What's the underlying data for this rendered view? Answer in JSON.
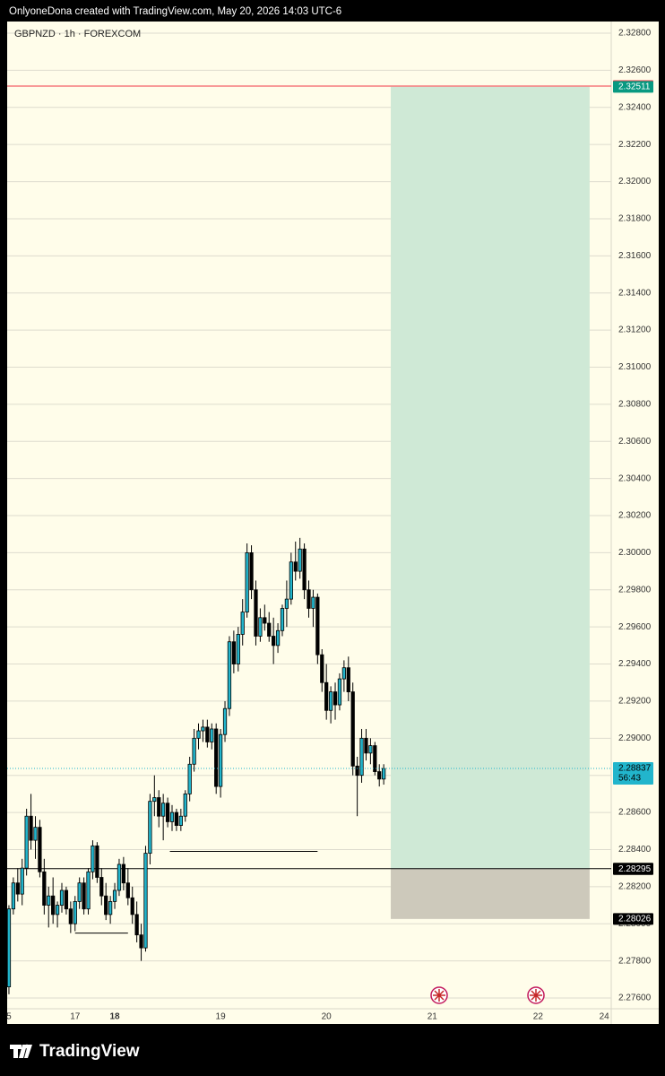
{
  "header": "OnlyoneDona created with TradingView.com, May 20, 2026 14:03 UTC-6",
  "footer": "TradingView",
  "chart_data": {
    "type": "candlestick",
    "title": "GBPNZD · 1h · FOREXCOM",
    "open": [
      2.2766,
      2.2808,
      2.2822,
      2.2816,
      2.283,
      2.2858,
      2.2845,
      2.2852,
      2.2828,
      2.281,
      2.2815,
      2.2805,
      2.281,
      2.2818,
      2.2808,
      2.28,
      2.2812,
      2.2822,
      2.2808,
      2.2828,
      2.2842,
      2.2825,
      2.2815,
      2.2805,
      2.2812,
      2.2818,
      2.2832,
      2.2822,
      2.2814,
      2.2805,
      2.2794,
      2.2787,
      2.2838,
      2.2866,
      2.2868,
      2.2858,
      2.2865,
      2.2855,
      2.286,
      2.2853,
      2.2858,
      2.287,
      2.2886,
      2.29,
      2.2904,
      2.2906,
      2.2898,
      2.2905,
      2.2874,
      2.2902,
      2.2916,
      2.2952,
      2.294,
      2.2956,
      2.2968,
      2.3,
      2.298,
      2.2955,
      2.2965,
      2.2962,
      2.2955,
      2.295,
      2.2958,
      2.297,
      2.2975,
      2.2995,
      2.299,
      2.3002,
      2.298,
      2.297,
      2.2976,
      2.2945,
      2.293,
      2.2915,
      2.2925,
      2.2918,
      2.2932,
      2.2938,
      2.2925,
      2.2885,
      2.288,
      2.29,
      2.2892,
      2.2896,
      2.2882,
      2.2878
    ],
    "high": [
      2.281,
      2.2825,
      2.283,
      2.2835,
      2.2862,
      2.287,
      2.2858,
      2.2856,
      2.2835,
      2.282,
      2.2825,
      2.2812,
      2.2822,
      2.282,
      2.2812,
      2.2815,
      2.2825,
      2.2825,
      2.283,
      2.2845,
      2.2844,
      2.283,
      2.2822,
      2.2815,
      2.2822,
      2.2835,
      2.2836,
      2.283,
      2.282,
      2.2812,
      2.28,
      2.2842,
      2.287,
      2.288,
      2.2872,
      2.287,
      2.2868,
      2.2864,
      2.2862,
      2.2862,
      2.2872,
      2.289,
      2.2905,
      2.2908,
      2.291,
      2.291,
      2.2908,
      2.2908,
      2.2905,
      2.292,
      2.2955,
      2.2958,
      2.296,
      2.2975,
      2.3005,
      2.3004,
      2.2985,
      2.297,
      2.2972,
      2.2968,
      2.2965,
      2.2962,
      2.2972,
      2.2985,
      2.3,
      2.3006,
      2.3008,
      2.3005,
      2.2985,
      2.298,
      2.2978,
      2.2948,
      2.294,
      2.2928,
      2.293,
      2.2935,
      2.2942,
      2.2944,
      2.293,
      2.289,
      2.2905,
      2.2905,
      2.29,
      2.2898,
      2.2886,
      2.2886
    ],
    "low": [
      2.2762,
      2.2805,
      2.2812,
      2.281,
      2.2826,
      2.284,
      2.2835,
      2.2825,
      2.2805,
      2.2798,
      2.28,
      2.2798,
      2.2806,
      2.2805,
      2.2795,
      2.2796,
      2.2808,
      2.2805,
      2.2805,
      2.2824,
      2.2822,
      2.281,
      2.2802,
      2.28,
      2.2808,
      2.2815,
      2.2818,
      2.281,
      2.28,
      2.279,
      2.278,
      2.2785,
      2.2832,
      2.2858,
      2.2852,
      2.2845,
      2.2852,
      2.285,
      2.285,
      2.285,
      2.2855,
      2.2866,
      2.2882,
      2.2894,
      2.2898,
      2.2895,
      2.2894,
      2.287,
      2.2868,
      2.2898,
      2.2912,
      2.2935,
      2.2936,
      2.295,
      2.2965,
      2.2975,
      2.295,
      2.2952,
      2.2958,
      2.2952,
      2.294,
      2.2946,
      2.2955,
      2.296,
      2.2972,
      2.2985,
      2.2986,
      2.2975,
      2.2965,
      2.296,
      2.294,
      2.2925,
      2.291,
      2.2908,
      2.291,
      2.2915,
      2.2925,
      2.292,
      2.288,
      2.2858,
      2.2876,
      2.2888,
      2.2886,
      2.288,
      2.2874,
      2.2875
    ],
    "close": [
      2.2808,
      2.2822,
      2.2816,
      2.283,
      2.2858,
      2.2845,
      2.2852,
      2.2828,
      2.281,
      2.2815,
      2.2805,
      2.281,
      2.2818,
      2.2808,
      2.28,
      2.2812,
      2.2822,
      2.2808,
      2.2828,
      2.2842,
      2.2825,
      2.2815,
      2.2805,
      2.2812,
      2.2818,
      2.2832,
      2.2822,
      2.2814,
      2.2805,
      2.2794,
      2.2787,
      2.2838,
      2.2866,
      2.2868,
      2.2858,
      2.2865,
      2.2855,
      2.286,
      2.2853,
      2.2858,
      2.287,
      2.2886,
      2.29,
      2.2904,
      2.2906,
      2.2898,
      2.2905,
      2.2874,
      2.2902,
      2.2916,
      2.2952,
      2.294,
      2.2956,
      2.2968,
      2.3,
      2.298,
      2.2955,
      2.2965,
      2.2962,
      2.2955,
      2.295,
      2.2958,
      2.297,
      2.2975,
      2.2995,
      2.299,
      2.3002,
      2.298,
      2.297,
      2.2976,
      2.2945,
      2.293,
      2.2915,
      2.2925,
      2.2918,
      2.2932,
      2.2938,
      2.2925,
      2.2885,
      2.288,
      2.29,
      2.2892,
      2.2896,
      2.2882,
      2.2878,
      2.28837
    ],
    "up_color": "#22b5cc",
    "down_color": "#000000",
    "xlim": [
      -0.4,
      136.6
    ],
    "xticks": [
      {
        "value": 0,
        "label": "5"
      },
      {
        "value": 15,
        "label": "17"
      },
      {
        "value": 24,
        "label": "18"
      },
      {
        "value": 48,
        "label": "19"
      },
      {
        "value": 72,
        "label": "20"
      },
      {
        "value": 96,
        "label": "21"
      },
      {
        "value": 120,
        "label": "22"
      },
      {
        "value": 135,
        "label": "24"
      }
    ],
    "ylim": [
      2.27542,
      2.32863
    ],
    "yticks": [
      {
        "value": 2.276,
        "label": "2.27600"
      },
      {
        "value": 2.278,
        "label": "2.27800"
      },
      {
        "value": 2.28,
        "label": "2.28000"
      },
      {
        "value": 2.282,
        "label": "2.28200"
      },
      {
        "value": 2.284,
        "label": "2.28400"
      },
      {
        "value": 2.286,
        "label": "2.28600"
      },
      {
        "value": 2.288,
        "label": "2.28800"
      },
      {
        "value": 2.29,
        "label": "2.29000"
      },
      {
        "value": 2.292,
        "label": "2.29200"
      },
      {
        "value": 2.294,
        "label": "2.29400"
      },
      {
        "value": 2.296,
        "label": "2.29600"
      },
      {
        "value": 2.298,
        "label": "2.29800"
      },
      {
        "value": 2.3,
        "label": "2.30000"
      },
      {
        "value": 2.302,
        "label": "2.30200"
      },
      {
        "value": 2.304,
        "label": "2.30400"
      },
      {
        "value": 2.306,
        "label": "2.30600"
      },
      {
        "value": 2.308,
        "label": "2.30800"
      },
      {
        "value": 2.31,
        "label": "2.31000"
      },
      {
        "value": 2.312,
        "label": "2.31200"
      },
      {
        "value": 2.314,
        "label": "2.31400"
      },
      {
        "value": 2.316,
        "label": "2.31600"
      },
      {
        "value": 2.318,
        "label": "2.31800"
      },
      {
        "value": 2.32,
        "label": "2.32000"
      },
      {
        "value": 2.322,
        "label": "2.32200"
      },
      {
        "value": 2.324,
        "label": "2.32400"
      },
      {
        "value": 2.326,
        "label": "2.32600"
      },
      {
        "value": 2.328,
        "label": "2.32800"
      }
    ],
    "grid": true,
    "position": {
      "x": [
        86.6,
        131.7
      ],
      "target": 2.32511,
      "entry": 2.28297,
      "stop": 2.28026,
      "profit_color": "#cfe9d6",
      "loss_color": "#cdc9bb"
    },
    "price_lines": [
      {
        "value": 2.32515,
        "color": "#f23645"
      },
      {
        "value": 2.28297,
        "color": "#000000"
      }
    ],
    "levels": [
      {
        "value": 2.2839,
        "x": [
          36.5,
          70
        ]
      },
      {
        "value": 2.2795,
        "x": [
          15,
          27
        ]
      }
    ],
    "axis_labels": [
      {
        "value": 2.32515,
        "color": "#f23645"
      },
      {
        "value": 2.32511,
        "color": "#089981"
      },
      {
        "value": 2.28837,
        "countdown": "56:43",
        "color": "#22b5cc"
      },
      {
        "value": 2.28297,
        "color": "#000000"
      },
      {
        "value": 2.28295,
        "color": "#000000"
      },
      {
        "value": 2.28026,
        "color": "#000000"
      }
    ]
  }
}
